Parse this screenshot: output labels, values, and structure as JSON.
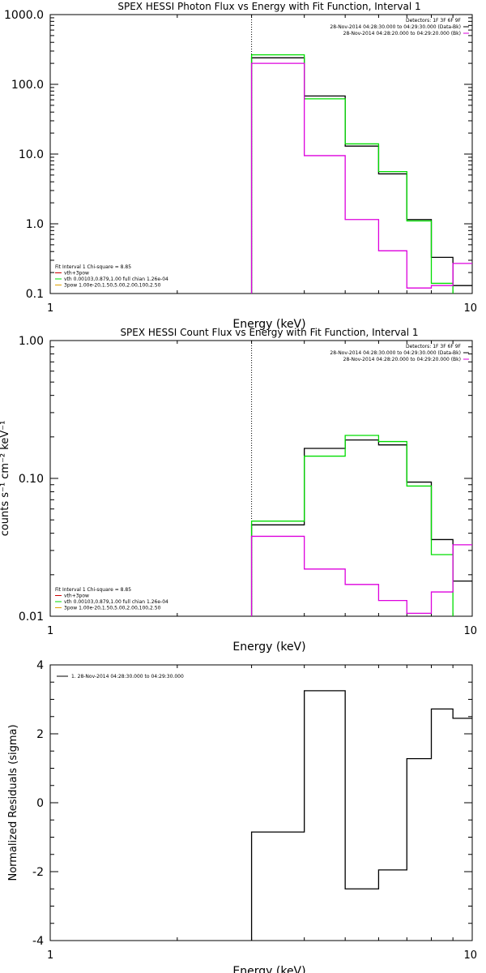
{
  "colors": {
    "black": "#000000",
    "green": "#00dd00",
    "magenta": "#dd00dd",
    "orange": "#e0a000",
    "red": "#cc0000",
    "bg": "#ffffff"
  },
  "chart_data": [
    {
      "id": "photon",
      "type": "line",
      "title": "SPEX HESSI Photon Flux vs Energy with Fit Function, Interval 1",
      "xlabel": "Energy (keV)",
      "ylabel": "",
      "xscale": "log",
      "yscale": "log",
      "xlim": [
        1,
        10
      ],
      "ylim": [
        0.1,
        1000
      ],
      "xticks": [
        1,
        10
      ],
      "xtick_labels": [
        "1",
        "10"
      ],
      "yticks": [
        0.1,
        1,
        10,
        100,
        1000
      ],
      "ytick_labels": [
        "0.1",
        "1.0",
        "10.0",
        "100.0",
        "1000.0"
      ],
      "grid": false,
      "vline": 3.0,
      "legend_right": [
        "Detectors: 1F 3F 6F 9F",
        "28-Nov-2014 04:28:30.000 to 04:29:30.000 (Data-Bk)",
        "28-Nov-2014 04:28:20.000 to 04:29:20.000 (Bk)"
      ],
      "legend_right_colors": [
        "",
        "#000000",
        "#dd00dd"
      ],
      "legend_left": [
        "Fit Interval 1    Chi-square = 8.85",
        "vth+3pow",
        "vth 0.00103,0.879,1.00  full chian 1.26e-04",
        "3pow 1.00e-20,1.50,5.00,2.00,100,2.50"
      ],
      "legend_left_colors": [
        "",
        "#cc0000",
        "#00dd00",
        "#e0a000"
      ],
      "series": [
        {
          "color": "#000000",
          "edges": [
            3.0,
            4.0,
            5.0,
            6.0,
            7.0,
            8.0,
            9.0,
            10.0
          ],
          "values": [
            240,
            68,
            13,
            5.2,
            1.15,
            0.33,
            0.13
          ]
        },
        {
          "color": "#00dd00",
          "edges": [
            3.0,
            4.0,
            5.0,
            6.0,
            7.0,
            8.0,
            9.0
          ],
          "values": [
            265,
            62,
            14,
            5.6,
            1.1,
            0.14
          ]
        },
        {
          "color": "#dd00dd",
          "edges": [
            3.0,
            4.0,
            5.0,
            6.0,
            7.0,
            8.0,
            9.0,
            10.0
          ],
          "values": [
            200,
            9.5,
            1.15,
            0.41,
            0.12,
            0.13,
            0.27
          ]
        }
      ]
    },
    {
      "id": "count",
      "type": "line",
      "title": "SPEX HESSI Count Flux vs Energy with Fit Function, Interval 1",
      "xlabel": "Energy (keV)",
      "ylabel": "counts s⁻¹ cm⁻² keV⁻¹",
      "xscale": "log",
      "yscale": "log",
      "xlim": [
        1,
        10
      ],
      "ylim": [
        0.01,
        1.0
      ],
      "xticks": [
        1,
        10
      ],
      "xtick_labels": [
        "1",
        "10"
      ],
      "yticks": [
        0.01,
        0.1,
        1.0
      ],
      "ytick_labels": [
        "0.01",
        "0.10",
        "1.00"
      ],
      "grid": false,
      "vline": 3.0,
      "legend_right": [
        "Detectors: 1F 3F 6F 9F",
        "28-Nov-2014 04:28:30.000 to 04:29:30.000 (Data-Bk)",
        "28-Nov-2014 04:28:20.000 to 04:29:20.000 (Bk)"
      ],
      "legend_right_colors": [
        "",
        "#000000",
        "#dd00dd"
      ],
      "legend_left": [
        "Fit Interval 1    Chi-square = 8.85",
        "vth+3pow",
        "vth 0.00103,0.879,1.00  full chian 1.26e-04",
        "3pow 1.00e-20,1.50,5.00,2.00,100,2.50"
      ],
      "legend_left_colors": [
        "",
        "#cc0000",
        "#00dd00",
        "#e0a000"
      ],
      "series": [
        {
          "color": "#000000",
          "edges": [
            3.0,
            4.0,
            5.0,
            6.0,
            7.0,
            8.0,
            9.0,
            10.0
          ],
          "values": [
            0.046,
            0.165,
            0.19,
            0.175,
            0.094,
            0.036,
            0.018
          ]
        },
        {
          "color": "#00dd00",
          "edges": [
            3.0,
            4.0,
            5.0,
            6.0,
            7.0,
            8.0,
            9.0
          ],
          "values": [
            0.049,
            0.145,
            0.205,
            0.185,
            0.088,
            0.028
          ]
        },
        {
          "color": "#dd00dd",
          "edges": [
            3.0,
            4.0,
            5.0,
            6.0,
            7.0,
            8.0,
            9.0,
            10.0
          ],
          "values": [
            0.038,
            0.022,
            0.017,
            0.013,
            0.0105,
            0.015,
            0.033
          ]
        }
      ]
    },
    {
      "id": "residuals",
      "type": "line",
      "title": "",
      "xlabel": "Energy (keV)",
      "ylabel": "Normalized Residuals (sigma)",
      "xscale": "log",
      "yscale": "linear",
      "xlim": [
        1,
        10
      ],
      "ylim": [
        -4,
        4
      ],
      "xticks": [
        1,
        10
      ],
      "xtick_labels": [
        "1",
        "10"
      ],
      "yticks": [
        -4,
        -2,
        0,
        2,
        4
      ],
      "ytick_labels": [
        "-4",
        "-2",
        "0",
        "2",
        "4"
      ],
      "grid": false,
      "legend_right": [],
      "legend_right_colors": [],
      "legend_left": [
        "1. 28-Nov-2014 04:28:30.000 to 04:29:30.000"
      ],
      "legend_left_colors": [
        "#000000"
      ],
      "series": [
        {
          "color": "#000000",
          "edges": [
            3.0,
            4.0,
            5.0,
            6.0,
            7.0,
            8.0,
            9.0,
            10.0
          ],
          "values": [
            -0.85,
            3.25,
            -2.5,
            -1.95,
            1.28,
            2.72,
            2.45
          ]
        }
      ]
    }
  ]
}
